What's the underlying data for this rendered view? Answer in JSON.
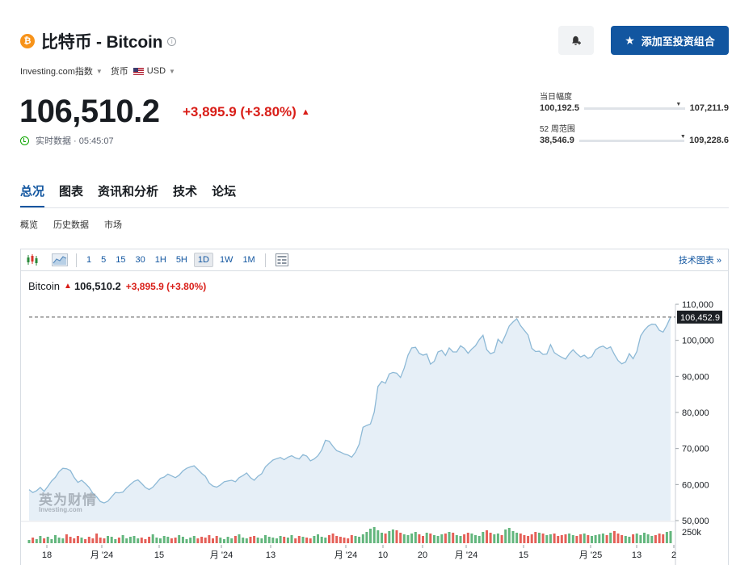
{
  "header": {
    "coin_symbol": "₿",
    "title": "比特币 - Bitcoin",
    "info_symbol": "i",
    "add_portfolio_label": "添加至投资组合",
    "bell_icon": "bell-plus-icon",
    "star_icon": "star-icon"
  },
  "meta": {
    "index_label": "Investing.com指数",
    "currency_label": "货币",
    "currency_value": "USD"
  },
  "quote": {
    "price": "106,510.2",
    "change": "+3,895.9 (+3.80%)",
    "realtime_label": "实时数据 · 05:45:07"
  },
  "day_range": {
    "label": "当日幅度",
    "low": "100,192.5",
    "high": "107,211.9",
    "position": 0.91
  },
  "week52_range": {
    "label": "52 周范围",
    "low": "38,546.9",
    "high": "109,228.6",
    "position": 0.96
  },
  "tabs": [
    "总况",
    "图表",
    "资讯和分析",
    "技术",
    "论坛"
  ],
  "subtabs": [
    "概览",
    "历史数据",
    "市场"
  ],
  "toolbar": {
    "intervals": [
      "1",
      "5",
      "15",
      "30",
      "1H",
      "5H",
      "1D",
      "1W",
      "1M"
    ],
    "selected_interval": "1D",
    "tech_chart_label": "技术图表 »"
  },
  "legend": {
    "name": "Bitcoin",
    "price": "106,510.2",
    "change": "+3,895.9 (+3.80%)"
  },
  "watermark": {
    "line1": "英为财情",
    "line2": "Investing.com"
  },
  "chart_data": {
    "type": "area",
    "y_ticks": [
      "110,000",
      "100,000",
      "90,000",
      "80,000",
      "70,000",
      "60,000",
      "50,000"
    ],
    "ylim": [
      50000,
      110000
    ],
    "current_label": "106,452.9",
    "current_value": 106452.9,
    "volume_label": "250k",
    "x_ticks": [
      "18",
      "月 '24",
      "15",
      "月 '24",
      "13",
      "月 '24",
      "10",
      "20",
      "月 '24",
      "15",
      "月 '25",
      "13",
      "2"
    ],
    "values": [
      58600,
      57800,
      58300,
      59200,
      58100,
      59500,
      61000,
      62000,
      63600,
      64500,
      64400,
      63900,
      62000,
      60600,
      61200,
      60300,
      59200,
      57600,
      56600,
      55300,
      54900,
      55400,
      56600,
      57800,
      57700,
      57900,
      59100,
      60000,
      60900,
      61300,
      60300,
      59200,
      58600,
      59300,
      60500,
      61700,
      62100,
      62900,
      62400,
      61900,
      62600,
      63800,
      64500,
      64900,
      65200,
      64200,
      63100,
      62300,
      60400,
      59600,
      59300,
      59900,
      60800,
      61000,
      61200,
      60800,
      61900,
      62500,
      63200,
      61900,
      61200,
      62300,
      63000,
      64900,
      65900,
      66800,
      67200,
      67500,
      66900,
      67600,
      68000,
      67400,
      67100,
      68300,
      67900,
      66600,
      67100,
      68000,
      69600,
      72300,
      72000,
      70600,
      69400,
      69000,
      68500,
      68200,
      67600,
      69000,
      71200,
      75900,
      76400,
      76800,
      80100,
      87200,
      88600,
      88100,
      90700,
      91100,
      90900,
      89700,
      92300,
      95900,
      97900,
      98100,
      96400,
      95900,
      96200,
      93400,
      94200,
      96800,
      97200,
      95800,
      97900,
      96800,
      96800,
      98500,
      97800,
      96400,
      97600,
      98500,
      100200,
      101400,
      97400,
      96300,
      96700,
      100300,
      99200,
      101500,
      104000,
      105100,
      106000,
      104100,
      102800,
      101500,
      97800,
      96900,
      97000,
      96100,
      96200,
      98800,
      96600,
      95900,
      95300,
      94800,
      96300,
      97400,
      96300,
      95400,
      95900,
      95000,
      95500,
      97400,
      98100,
      98400,
      97700,
      98200,
      96100,
      94400,
      93500,
      94000,
      96300,
      94900,
      96900,
      101200,
      102800,
      103900,
      104500,
      104400,
      102800,
      102300,
      104200,
      106452.9
    ],
    "volumes": [
      4,
      7,
      5,
      9,
      6,
      8,
      5,
      10,
      7,
      6,
      11,
      8,
      6,
      9,
      7,
      5,
      8,
      6,
      12,
      7,
      6,
      9,
      8,
      5,
      7,
      10,
      6,
      8,
      9,
      6,
      7,
      5,
      8,
      11,
      7,
      6,
      9,
      8,
      6,
      7,
      10,
      8,
      5,
      7,
      9,
      6,
      8,
      7,
      10,
      6,
      9,
      7,
      5,
      8,
      6,
      9,
      11,
      7,
      6,
      8,
      9,
      7,
      6,
      10,
      8,
      7,
      6,
      9,
      8,
      7,
      10,
      6,
      9,
      8,
      7,
      6,
      9,
      11,
      8,
      7,
      10,
      12,
      9,
      8,
      7,
      6,
      10,
      9,
      8,
      11,
      14,
      18,
      20,
      16,
      13,
      12,
      15,
      17,
      16,
      13,
      11,
      10,
      12,
      14,
      11,
      9,
      13,
      12,
      10,
      9,
      11,
      12,
      14,
      13,
      10,
      9,
      11,
      13,
      12,
      10,
      9,
      14,
      16,
      13,
      11,
      12,
      10,
      17,
      19,
      15,
      13,
      12,
      10,
      9,
      11,
      14,
      13,
      12,
      10,
      11,
      12,
      9,
      10,
      11,
      12,
      10,
      9,
      11,
      12,
      10,
      9,
      10,
      11,
      12,
      10,
      13,
      15,
      12,
      10,
      9,
      8,
      11,
      12,
      10,
      13,
      11,
      9,
      10,
      12,
      11,
      14,
      15
    ],
    "volume_colors": {
      "up": "#48a966",
      "down": "#e0443b"
    },
    "line_color": "#8db9d6",
    "fill_color": "#e6eff7"
  }
}
